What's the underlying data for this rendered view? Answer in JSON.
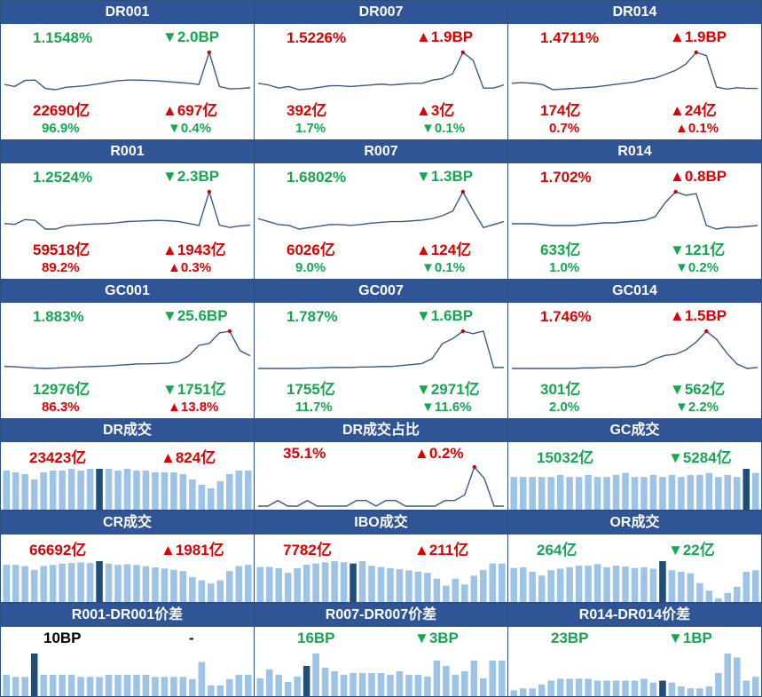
{
  "colors": {
    "header_bg": "#2f5597",
    "up": "#e00000",
    "down": "#13a94f",
    "line": "#3a5a8c",
    "bar": "#9dc3e6",
    "bar_highlight": "#1f4e79"
  },
  "lines": [
    {
      "title": "DR001",
      "rate": "1.1548%",
      "rate_dir": "dn",
      "chg": "▼2.0BP",
      "chg_dir": "dn",
      "vol": "22690亿",
      "vol_dir": "up",
      "vol_chg": "▲697亿",
      "vol_chg_dir": "up",
      "share": "96.9%",
      "share_dir": "dn",
      "share_chg": "▼0.4%",
      "share_chg_dir": "dn",
      "series": [
        1.25,
        1.2,
        1.35,
        1.36,
        1.15,
        1.12,
        1.18,
        1.2,
        1.22,
        1.26,
        1.3,
        1.34,
        1.36,
        1.36,
        1.35,
        1.34,
        1.32,
        1.3,
        1.28,
        1.25,
        2.05,
        1.2,
        1.14,
        1.15,
        1.17
      ]
    },
    {
      "title": "DR007",
      "rate": "1.5226%",
      "rate_dir": "up",
      "chg": "▲1.9BP",
      "chg_dir": "up",
      "vol": "392亿",
      "vol_dir": "up",
      "vol_chg": "▲3亿",
      "vol_chg_dir": "up",
      "share": "1.7%",
      "share_dir": "dn",
      "share_chg": "▼0.1%",
      "share_chg_dir": "dn",
      "series": [
        1.66,
        1.64,
        1.6,
        1.62,
        1.58,
        1.59,
        1.61,
        1.63,
        1.63,
        1.62,
        1.63,
        1.64,
        1.65,
        1.64,
        1.65,
        1.66,
        1.66,
        1.7,
        1.72,
        1.78,
        2.05,
        1.95,
        1.6,
        1.6,
        1.64
      ]
    },
    {
      "title": "DR014",
      "rate": "1.4711%",
      "rate_dir": "up",
      "chg": "▲1.9BP",
      "chg_dir": "up",
      "vol": "174亿",
      "vol_dir": "up",
      "vol_chg": "▲24亿",
      "vol_chg_dir": "up",
      "share": "0.7%",
      "share_dir": "up",
      "share_chg": "▲0.1%",
      "share_chg_dir": "up",
      "series": [
        1.72,
        1.73,
        1.72,
        1.7,
        1.62,
        1.63,
        1.64,
        1.65,
        1.66,
        1.68,
        1.7,
        1.72,
        1.74,
        1.78,
        1.8,
        1.86,
        1.92,
        2.02,
        2.2,
        2.15,
        1.66,
        1.63,
        1.65,
        1.64,
        1.64
      ]
    },
    {
      "title": "R001",
      "rate": "1.2524%",
      "rate_dir": "dn",
      "chg": "▼2.3BP",
      "chg_dir": "dn",
      "vol": "59518亿",
      "vol_dir": "up",
      "vol_chg": "▲1943亿",
      "vol_chg_dir": "up",
      "share": "89.2%",
      "share_dir": "up",
      "share_chg": "▲0.3%",
      "share_chg_dir": "up",
      "series": [
        1.3,
        1.28,
        1.4,
        1.38,
        1.16,
        1.16,
        1.24,
        1.26,
        1.28,
        1.29,
        1.3,
        1.32,
        1.35,
        1.36,
        1.37,
        1.38,
        1.37,
        1.35,
        1.3,
        1.25,
        2.1,
        1.26,
        1.2,
        1.24,
        1.26
      ]
    },
    {
      "title": "R007",
      "rate": "1.6802%",
      "rate_dir": "dn",
      "chg": "▼1.3BP",
      "chg_dir": "dn",
      "vol": "6026亿",
      "vol_dir": "up",
      "vol_chg": "▲124亿",
      "vol_chg_dir": "up",
      "share": "9.0%",
      "share_dir": "dn",
      "share_chg": "▼0.1%",
      "share_chg_dir": "dn",
      "series": [
        1.74,
        1.7,
        1.66,
        1.65,
        1.6,
        1.62,
        1.64,
        1.66,
        1.66,
        1.65,
        1.66,
        1.68,
        1.69,
        1.7,
        1.7,
        1.71,
        1.72,
        1.74,
        1.78,
        1.84,
        2.1,
        1.85,
        1.62,
        1.66,
        1.7
      ]
    },
    {
      "title": "R014",
      "rate": "1.702%",
      "rate_dir": "up",
      "chg": "▲0.8BP",
      "chg_dir": "up",
      "vol": "633亿",
      "vol_dir": "dn",
      "vol_chg": "▼121亿",
      "vol_chg_dir": "dn",
      "share": "1.0%",
      "share_dir": "dn",
      "share_chg": "▼0.2%",
      "share_chg_dir": "dn",
      "series": [
        1.72,
        1.72,
        1.72,
        1.71,
        1.7,
        1.7,
        1.7,
        1.71,
        1.72,
        1.73,
        1.73,
        1.74,
        1.75,
        1.76,
        1.8,
        1.96,
        2.08,
        2.04,
        2.06,
        1.7,
        1.66,
        1.68,
        1.68,
        1.69,
        1.7
      ]
    },
    {
      "title": "GC001",
      "rate": "1.883%",
      "rate_dir": "dn",
      "chg": "▼25.6BP",
      "chg_dir": "dn",
      "vol": "12976亿",
      "vol_dir": "dn",
      "vol_chg": "▼1751亿",
      "vol_chg_dir": "dn",
      "share": "86.3%",
      "share_dir": "up",
      "share_chg": "▲13.8%",
      "share_chg_dir": "up",
      "series": [
        1.45,
        1.44,
        1.42,
        1.4,
        1.39,
        1.4,
        1.42,
        1.43,
        1.44,
        1.45,
        1.46,
        1.48,
        1.5,
        1.52,
        1.52,
        1.53,
        1.54,
        1.58,
        1.75,
        2.05,
        2.1,
        2.4,
        2.45,
        1.9,
        1.75
      ]
    },
    {
      "title": "GC007",
      "rate": "1.787%",
      "rate_dir": "dn",
      "chg": "▼1.6BP",
      "chg_dir": "dn",
      "vol": "1755亿",
      "vol_dir": "dn",
      "vol_chg": "▼2971亿",
      "vol_chg_dir": "dn",
      "share": "11.7%",
      "share_dir": "dn",
      "share_chg": "▼11.6%",
      "share_chg_dir": "dn",
      "series": [
        1.6,
        1.6,
        1.6,
        1.6,
        1.6,
        1.61,
        1.61,
        1.62,
        1.62,
        1.62,
        1.63,
        1.63,
        1.64,
        1.64,
        1.66,
        1.68,
        1.7,
        1.8,
        2.1,
        2.2,
        2.35,
        2.3,
        2.35,
        1.62,
        1.62
      ]
    },
    {
      "title": "GC014",
      "rate": "1.746%",
      "rate_dir": "up",
      "chg": "▲1.5BP",
      "chg_dir": "up",
      "vol": "301亿",
      "vol_dir": "dn",
      "vol_chg": "▼562亿",
      "vol_chg_dir": "dn",
      "share": "2.0%",
      "share_dir": "dn",
      "share_chg": "▼2.2%",
      "share_chg_dir": "dn",
      "series": [
        1.62,
        1.62,
        1.62,
        1.62,
        1.62,
        1.62,
        1.62,
        1.63,
        1.63,
        1.64,
        1.64,
        1.65,
        1.66,
        1.7,
        1.8,
        1.86,
        1.88,
        1.96,
        2.1,
        2.3,
        2.15,
        1.9,
        1.7,
        1.62,
        1.64
      ]
    }
  ],
  "bars": [
    {
      "title": "DR成交",
      "left": "23423亿",
      "left_dir": "up",
      "right": "▲824亿",
      "right_dir": "up",
      "highlight": 10,
      "values": [
        22,
        21,
        20,
        17,
        21,
        22,
        22,
        23,
        22,
        23,
        23,
        23,
        22,
        23,
        22,
        22,
        21,
        21,
        21,
        20,
        17,
        14,
        12,
        16,
        20,
        22,
        22
      ]
    },
    {
      "title": "DR成交占比",
      "left": "35.1%",
      "left_dir": "up",
      "right": "▲0.2%",
      "right_dir": "up",
      "kind": "line",
      "series": [
        92,
        92,
        93,
        92,
        92,
        93,
        92,
        92,
        92,
        92,
        93,
        93,
        92,
        93,
        93,
        92,
        92,
        92,
        92,
        93,
        93,
        94,
        99,
        97,
        92,
        92
      ]
    },
    {
      "title": "GC成交",
      "left": "15032亿",
      "left_dir": "dn",
      "right": "▼5284亿",
      "right_dir": "dn",
      "highlight": 25,
      "values": [
        16,
        16,
        16,
        16,
        16,
        17,
        16,
        16,
        17,
        16,
        16,
        17,
        18,
        16,
        16,
        17,
        16,
        17,
        16,
        17,
        17,
        18,
        16,
        17,
        16,
        20,
        18
      ]
    },
    {
      "title": "CR成交",
      "left": "66692亿",
      "left_dir": "up",
      "right": "▲1981亿",
      "right_dir": "up",
      "highlight": 10,
      "values": [
        60,
        60,
        58,
        52,
        58,
        60,
        62,
        63,
        64,
        63,
        66,
        62,
        60,
        61,
        60,
        58,
        56,
        54,
        52,
        50,
        40,
        35,
        30,
        35,
        50,
        58,
        60
      ]
    },
    {
      "title": "IBO成交",
      "left": "7782亿",
      "left_dir": "up",
      "right": "▲211亿",
      "right_dir": "up",
      "highlight": 10,
      "values": [
        60,
        60,
        58,
        50,
        58,
        64,
        66,
        68,
        70,
        68,
        66,
        70,
        62,
        60,
        58,
        56,
        54,
        52,
        50,
        40,
        28,
        40,
        30,
        45,
        55,
        66,
        66
      ]
    },
    {
      "title": "OR成交",
      "left": "264亿",
      "left_dir": "dn",
      "right": "▼22亿",
      "right_dir": "dn",
      "highlight": 16,
      "values": [
        45,
        46,
        40,
        35,
        42,
        44,
        46,
        48,
        48,
        50,
        46,
        48,
        47,
        45,
        46,
        44,
        54,
        42,
        40,
        38,
        25,
        15,
        5,
        12,
        20,
        40,
        42
      ]
    },
    {
      "title": "R001-DR001价差",
      "left": "10BP",
      "left_dir": "bk",
      "right": "-",
      "right_dir": "bk",
      "highlight": 3,
      "values": [
        10,
        9,
        9,
        20,
        10,
        10,
        10,
        10,
        9,
        9,
        9,
        10,
        10,
        10,
        10,
        10,
        9,
        9,
        9,
        9,
        8,
        16,
        5,
        5,
        8,
        10,
        10
      ]
    },
    {
      "title": "R007-DR007价差",
      "left": "16BP",
      "left_dir": "dn",
      "right": "▼3BP",
      "right_dir": "dn",
      "highlight": 5,
      "values": [
        10,
        15,
        12,
        8,
        11,
        17,
        24,
        16,
        14,
        12,
        13,
        13,
        13,
        13,
        12,
        14,
        12,
        12,
        11,
        20,
        17,
        12,
        14,
        20,
        10,
        20,
        20
      ]
    },
    {
      "title": "R014-DR014价差",
      "left": "23BP",
      "left_dir": "dn",
      "right": "▼1BP",
      "right_dir": "dn",
      "highlight": 16,
      "values": [
        3,
        4,
        4,
        6,
        8,
        9,
        9,
        9,
        9,
        8,
        8,
        8,
        8,
        8,
        9,
        7,
        8,
        7,
        5,
        4,
        4,
        5,
        12,
        22,
        20,
        8,
        10
      ]
    }
  ]
}
